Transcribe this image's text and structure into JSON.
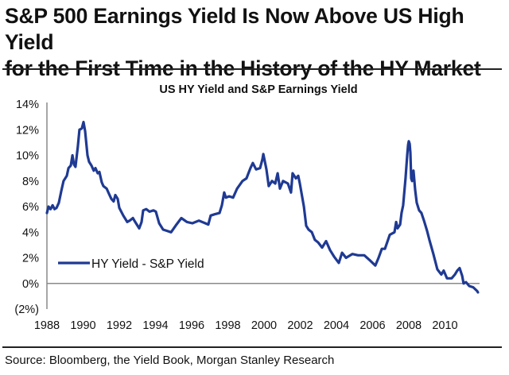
{
  "headline": {
    "line1": "S&P 500 Earnings Yield Is Now Above US High Yield",
    "line2": "for the First Time in the History of the HY Market"
  },
  "source": "Source: Bloomberg, the Yield Book, Morgan Stanley Research",
  "colors": {
    "series": "#1f3a93",
    "axis": "#8a8a8a",
    "rule": "#222222"
  },
  "chart_data": {
    "type": "line",
    "title": "US HY Yield and S&P Earnings Yield",
    "xlabel": "",
    "ylabel": "",
    "xlim": [
      1988,
      2012
    ],
    "ylim": [
      -2,
      14
    ],
    "grid": false,
    "legend_position": "lower-left",
    "x_ticks": [
      "1988",
      "1990",
      "1992",
      "1994",
      "1996",
      "1998",
      "2000",
      "2002",
      "2004",
      "2006",
      "2008",
      "2010"
    ],
    "y_ticks": [
      {
        "value": 14,
        "label": "14%"
      },
      {
        "value": 12,
        "label": "12%"
      },
      {
        "value": 10,
        "label": "10%"
      },
      {
        "value": 8,
        "label": "8%"
      },
      {
        "value": 6,
        "label": "6%"
      },
      {
        "value": 4,
        "label": "4%"
      },
      {
        "value": 2,
        "label": "2%"
      },
      {
        "value": 0,
        "label": "0%"
      },
      {
        "value": -2,
        "label": "(2%)"
      }
    ],
    "reference_line": {
      "y": 0
    },
    "series": [
      {
        "name": "HY Yield - S&P Yield",
        "x": [
          1988.0,
          1988.09,
          1988.2,
          1988.31,
          1988.42,
          1988.53,
          1988.66,
          1988.79,
          1988.92,
          1989.1,
          1989.19,
          1989.32,
          1989.41,
          1989.49,
          1989.58,
          1989.71,
          1989.8,
          1989.93,
          1990.02,
          1990.11,
          1990.24,
          1990.33,
          1990.46,
          1990.59,
          1990.68,
          1990.81,
          1990.9,
          1991.03,
          1991.12,
          1991.3,
          1991.43,
          1991.56,
          1991.69,
          1991.78,
          1991.91,
          1992.0,
          1992.22,
          1992.44,
          1992.57,
          1992.75,
          1992.88,
          1993.1,
          1993.23,
          1993.32,
          1993.49,
          1993.67,
          1993.89,
          1994.02,
          1994.2,
          1994.42,
          1994.64,
          1994.86,
          1995.16,
          1995.43,
          1995.74,
          1996.04,
          1996.4,
          1996.75,
          1996.92,
          1997.05,
          1997.27,
          1997.54,
          1997.67,
          1997.8,
          1997.89,
          1998.07,
          1998.29,
          1998.51,
          1998.81,
          1999.03,
          1999.25,
          1999.38,
          1999.56,
          1999.78,
          1999.91,
          1999.96,
          2000.13,
          2000.26,
          2000.44,
          2000.62,
          2000.75,
          2000.88,
          2001.05,
          2001.32,
          2001.49,
          2001.58,
          2001.76,
          2001.89,
          2001.98,
          2002.2,
          2002.33,
          2002.46,
          2002.64,
          2002.81,
          2002.99,
          2003.21,
          2003.43,
          2003.65,
          2003.87,
          2004.13,
          2004.31,
          2004.53,
          2004.88,
          2005.19,
          2005.54,
          2005.85,
          2006.15,
          2006.33,
          2006.51,
          2006.68,
          2006.95,
          2007.21,
          2007.3,
          2007.38,
          2007.52,
          2007.6,
          2007.69,
          2007.82,
          2007.91,
          2007.96,
          2008.0,
          2008.05,
          2008.09,
          2008.13,
          2008.18,
          2008.22,
          2008.26,
          2008.35,
          2008.44,
          2008.57,
          2008.7,
          2008.84,
          2009.01,
          2009.14,
          2009.36,
          2009.58,
          2009.8,
          2009.93,
          2010.11,
          2010.37,
          2010.55,
          2010.68,
          2010.81,
          2010.95,
          2011.03,
          2011.16,
          2011.34,
          2011.56,
          2011.78,
          2011.82
        ],
        "values": [
          5.5,
          6.0,
          5.8,
          6.1,
          5.8,
          5.9,
          6.3,
          7.2,
          8.0,
          8.4,
          9.0,
          9.2,
          10.0,
          9.3,
          9.1,
          10.7,
          12.0,
          12.1,
          12.6,
          11.9,
          10.0,
          9.5,
          9.2,
          8.8,
          9.0,
          8.6,
          8.7,
          7.9,
          7.6,
          7.4,
          7.0,
          6.6,
          6.4,
          6.9,
          6.6,
          5.9,
          5.3,
          4.8,
          4.9,
          5.1,
          4.8,
          4.3,
          4.8,
          5.7,
          5.8,
          5.6,
          5.7,
          5.6,
          4.7,
          4.2,
          4.1,
          4.0,
          4.6,
          5.1,
          4.8,
          4.7,
          4.9,
          4.7,
          4.6,
          5.3,
          5.4,
          5.5,
          6.1,
          7.1,
          6.7,
          6.8,
          6.7,
          7.4,
          8.0,
          8.2,
          9.0,
          9.4,
          8.9,
          9.0,
          9.7,
          10.1,
          8.9,
          7.6,
          8.0,
          7.8,
          8.6,
          7.4,
          8.0,
          7.8,
          7.1,
          8.6,
          8.2,
          8.4,
          7.8,
          6.0,
          4.5,
          4.2,
          4.0,
          3.4,
          3.2,
          2.8,
          3.3,
          2.6,
          2.1,
          1.6,
          2.4,
          2.0,
          2.3,
          2.2,
          2.2,
          1.8,
          1.4,
          2.0,
          2.7,
          2.7,
          3.8,
          4.0,
          4.8,
          4.3,
          4.6,
          5.5,
          6.1,
          8.2,
          10.0,
          10.8,
          11.1,
          10.9,
          10.2,
          8.2,
          8.0,
          8.6,
          8.8,
          7.3,
          6.3,
          5.7,
          5.5,
          4.9,
          4.1,
          3.4,
          2.3,
          1.1,
          0.7,
          1.0,
          0.4,
          0.4,
          0.7,
          1.0,
          1.2,
          0.6,
          0.0,
          0.1,
          -0.2,
          -0.3,
          -0.6,
          -0.7
        ]
      }
    ]
  }
}
